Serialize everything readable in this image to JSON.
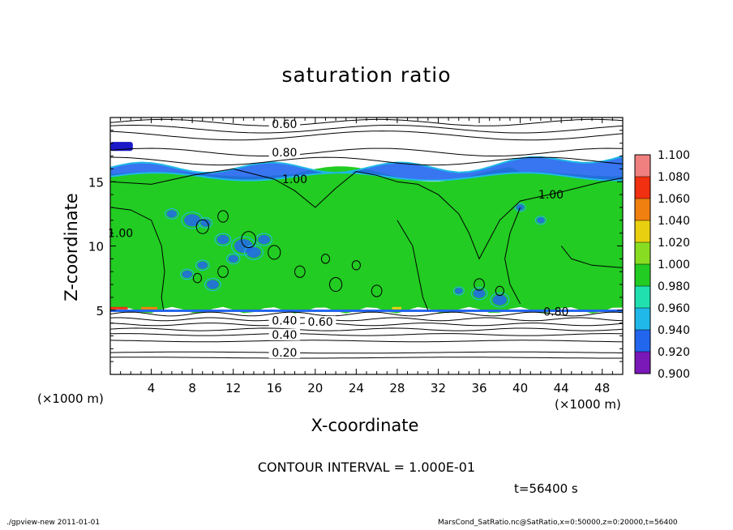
{
  "chart_data": {
    "type": "heatmap",
    "title": "saturation ratio",
    "xlabel": "X-coordinate",
    "ylabel": "Z-coordinate",
    "x_unit": "(×1000 m)",
    "y_unit": "(×1000 m)",
    "xlim": [
      0,
      50
    ],
    "ylim": [
      0,
      20
    ],
    "x_ticks": [
      4,
      8,
      12,
      16,
      20,
      24,
      28,
      32,
      36,
      40,
      44,
      48
    ],
    "y_ticks": [
      5,
      10,
      15
    ],
    "colorbar": {
      "levels": [
        0.9,
        0.92,
        0.94,
        0.96,
        0.98,
        1.0,
        1.02,
        1.04,
        1.06,
        1.08,
        1.1
      ],
      "labels": [
        "0.900",
        "0.920",
        "0.940",
        "0.960",
        "0.980",
        "1.000",
        "1.020",
        "1.040",
        "1.060",
        "1.080",
        "1.100"
      ],
      "colors": [
        "#7a18b8",
        "#1a1ac8",
        "#2266ee",
        "#1fb8e8",
        "#20e0b0",
        "#22cc22",
        "#88dd22",
        "#e8d010",
        "#f08010",
        "#f03010",
        "#f08080"
      ]
    },
    "contour_labels": [
      {
        "text": "0.60",
        "x": 17,
        "z": 19.5
      },
      {
        "text": "0.80",
        "x": 17,
        "z": 17.3
      },
      {
        "text": "1.00",
        "x": 18,
        "z": 15.2
      },
      {
        "text": "1.00",
        "x": 1,
        "z": 11
      },
      {
        "text": "1.00",
        "x": 43,
        "z": 14
      },
      {
        "text": "0.80",
        "x": 43.5,
        "z": 4.9
      },
      {
        "text": "0.60",
        "x": 20.5,
        "z": 4.1
      },
      {
        "text": "0.40",
        "x": 17,
        "z": 4.2
      },
      {
        "text": "0.40",
        "x": 17,
        "z": 3.1
      },
      {
        "text": "0.20",
        "x": 17,
        "z": 1.7
      }
    ],
    "contour_interval_text": "CONTOUR INTERVAL = 1.000E-01",
    "time_text": "t=56400 s"
  },
  "footer": {
    "left": "./gpview-new   2011-01-01",
    "right": "MarsCond_SatRatio.nc@SatRatio,x=0:50000,z=0:20000,t=56400"
  }
}
